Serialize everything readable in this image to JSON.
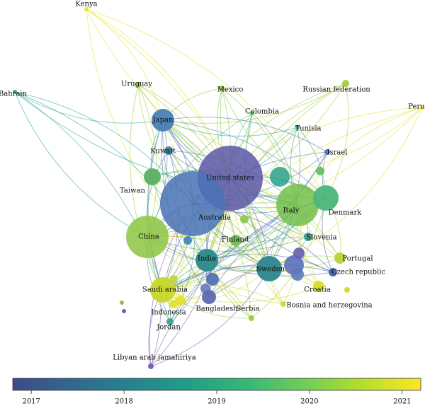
{
  "nodes": [
    {
      "label": "United states",
      "color": "#5a57a6"
    },
    {
      "label": "Australia",
      "color": "#4a72b6"
    },
    {
      "label": "Japan",
      "color": "#4a80b4"
    },
    {
      "label": "Italy",
      "color": "#72c04a"
    },
    {
      "label": "China",
      "color": "#8cc641"
    },
    {
      "label": "India",
      "color": "#2a8a8c"
    },
    {
      "label": "Sweden",
      "color": "#2c8690"
    },
    {
      "label": "Saudi arabia",
      "color": "#c8d72a"
    },
    {
      "label": "Denmark",
      "color": "#4bb67a"
    },
    {
      "label": "Kuwait",
      "color": "#3f7ea0"
    },
    {
      "label": "Taiwan",
      "color": "#5cb060"
    },
    {
      "label": "Finland",
      "color": "#6cc05a"
    },
    {
      "label": "Slovenia",
      "color": "#3aa08a"
    },
    {
      "label": "Portugal",
      "color": "#b6d43a"
    },
    {
      "label": "Czech republic",
      "color": "#4060a8"
    },
    {
      "label": "Croatia",
      "color": "#d6dd2a"
    },
    {
      "label": "Bangladesh",
      "color": "#5a6aae"
    },
    {
      "label": "Serbia",
      "color": "#9acb3a"
    },
    {
      "label": "Bosnia and herzegovina",
      "color": "#cfdb2a"
    },
    {
      "label": "Indonesia",
      "color": "#e3e22a"
    },
    {
      "label": "Jordan",
      "color": "#3fa090"
    },
    {
      "label": "Libyan arab jamahiriya",
      "color": "#7a5bb0"
    },
    {
      "label": "Kenya",
      "color": "#e8e22a"
    },
    {
      "label": "Bahrain",
      "color": "#2ea79a"
    },
    {
      "label": "Uruguay",
      "color": "#9ccc3a"
    },
    {
      "label": "Mexico",
      "color": "#8bc640"
    },
    {
      "label": "Russian federation",
      "color": "#a0cf3a"
    },
    {
      "label": "Colombia",
      "color": "#55b86a"
    },
    {
      "label": "Tunisia",
      "color": "#3aa08a"
    },
    {
      "label": "Israel",
      "color": "#4a7ab0"
    },
    {
      "label": "Peru",
      "color": "#e8e22a"
    }
  ],
  "colorbar": {
    "lim": [
      2016.8,
      2021.2
    ],
    "ticks": [
      2017,
      2018,
      2019,
      2020,
      2021
    ],
    "colors": [
      "#3e4a89",
      "#31688e",
      "#26828e",
      "#1f9e89",
      "#35b779",
      "#6ece58",
      "#b5de2b",
      "#fde725"
    ]
  }
}
